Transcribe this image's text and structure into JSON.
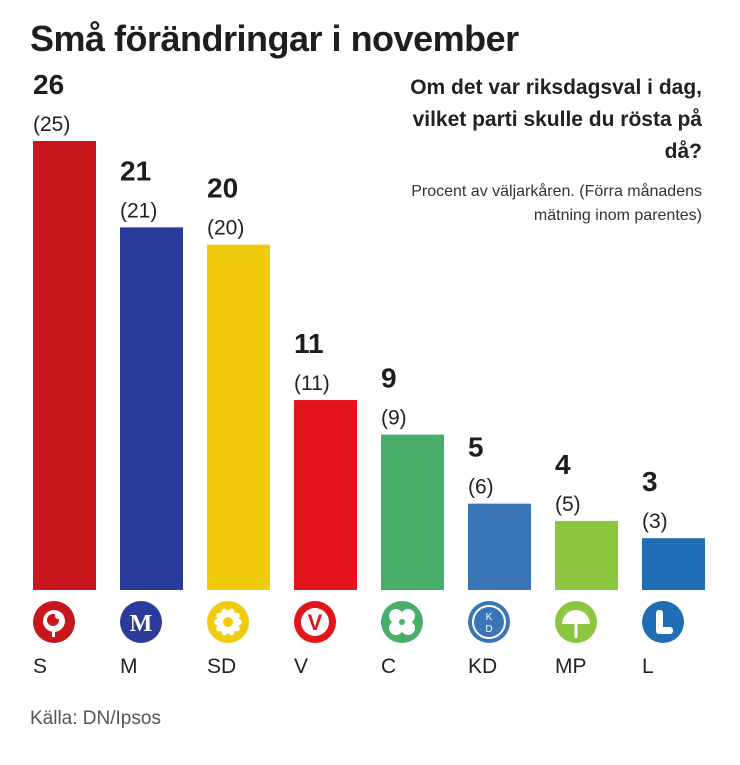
{
  "title": "Små förändringar i november",
  "question": "Om det var riksdagsval i dag, vilket parti skulle du rösta på då?",
  "note": "Procent av väljarkåren. (Förra månadens mätning inom parentes)",
  "source": "Källa: DN/Ipsos",
  "colors": {
    "S": "#c8161d",
    "M": "#2a3c9b",
    "SD": "#efcb0c",
    "V": "#e3141b",
    "C": "#48ae6a",
    "KD": "#3a75b8",
    "MP": "#8cc63f",
    "L": "#1f6db4"
  },
  "chart_data": {
    "type": "bar",
    "title": "Små förändringar i november",
    "categories": [
      "S",
      "M",
      "SD",
      "V",
      "C",
      "KD",
      "MP",
      "L"
    ],
    "values": [
      26,
      21,
      20,
      11,
      9,
      5,
      4,
      3
    ],
    "previous": [
      25,
      21,
      20,
      11,
      9,
      6,
      5,
      3
    ],
    "series": [
      {
        "name": "November",
        "values": [
          26,
          21,
          20,
          11,
          9,
          5,
          4,
          3
        ]
      },
      {
        "name": "Förra månaden",
        "values": [
          25,
          21,
          20,
          11,
          9,
          6,
          5,
          3
        ]
      }
    ],
    "xlabel": "",
    "ylabel": "Procent av väljarkåren",
    "ylim": [
      0,
      26
    ],
    "icons": [
      "s-rose-icon",
      "m-logo-icon",
      "sd-flower-icon",
      "v-logo-icon",
      "c-clover-icon",
      "kd-logo-icon",
      "mp-dandelion-icon",
      "l-logo-icon"
    ]
  }
}
